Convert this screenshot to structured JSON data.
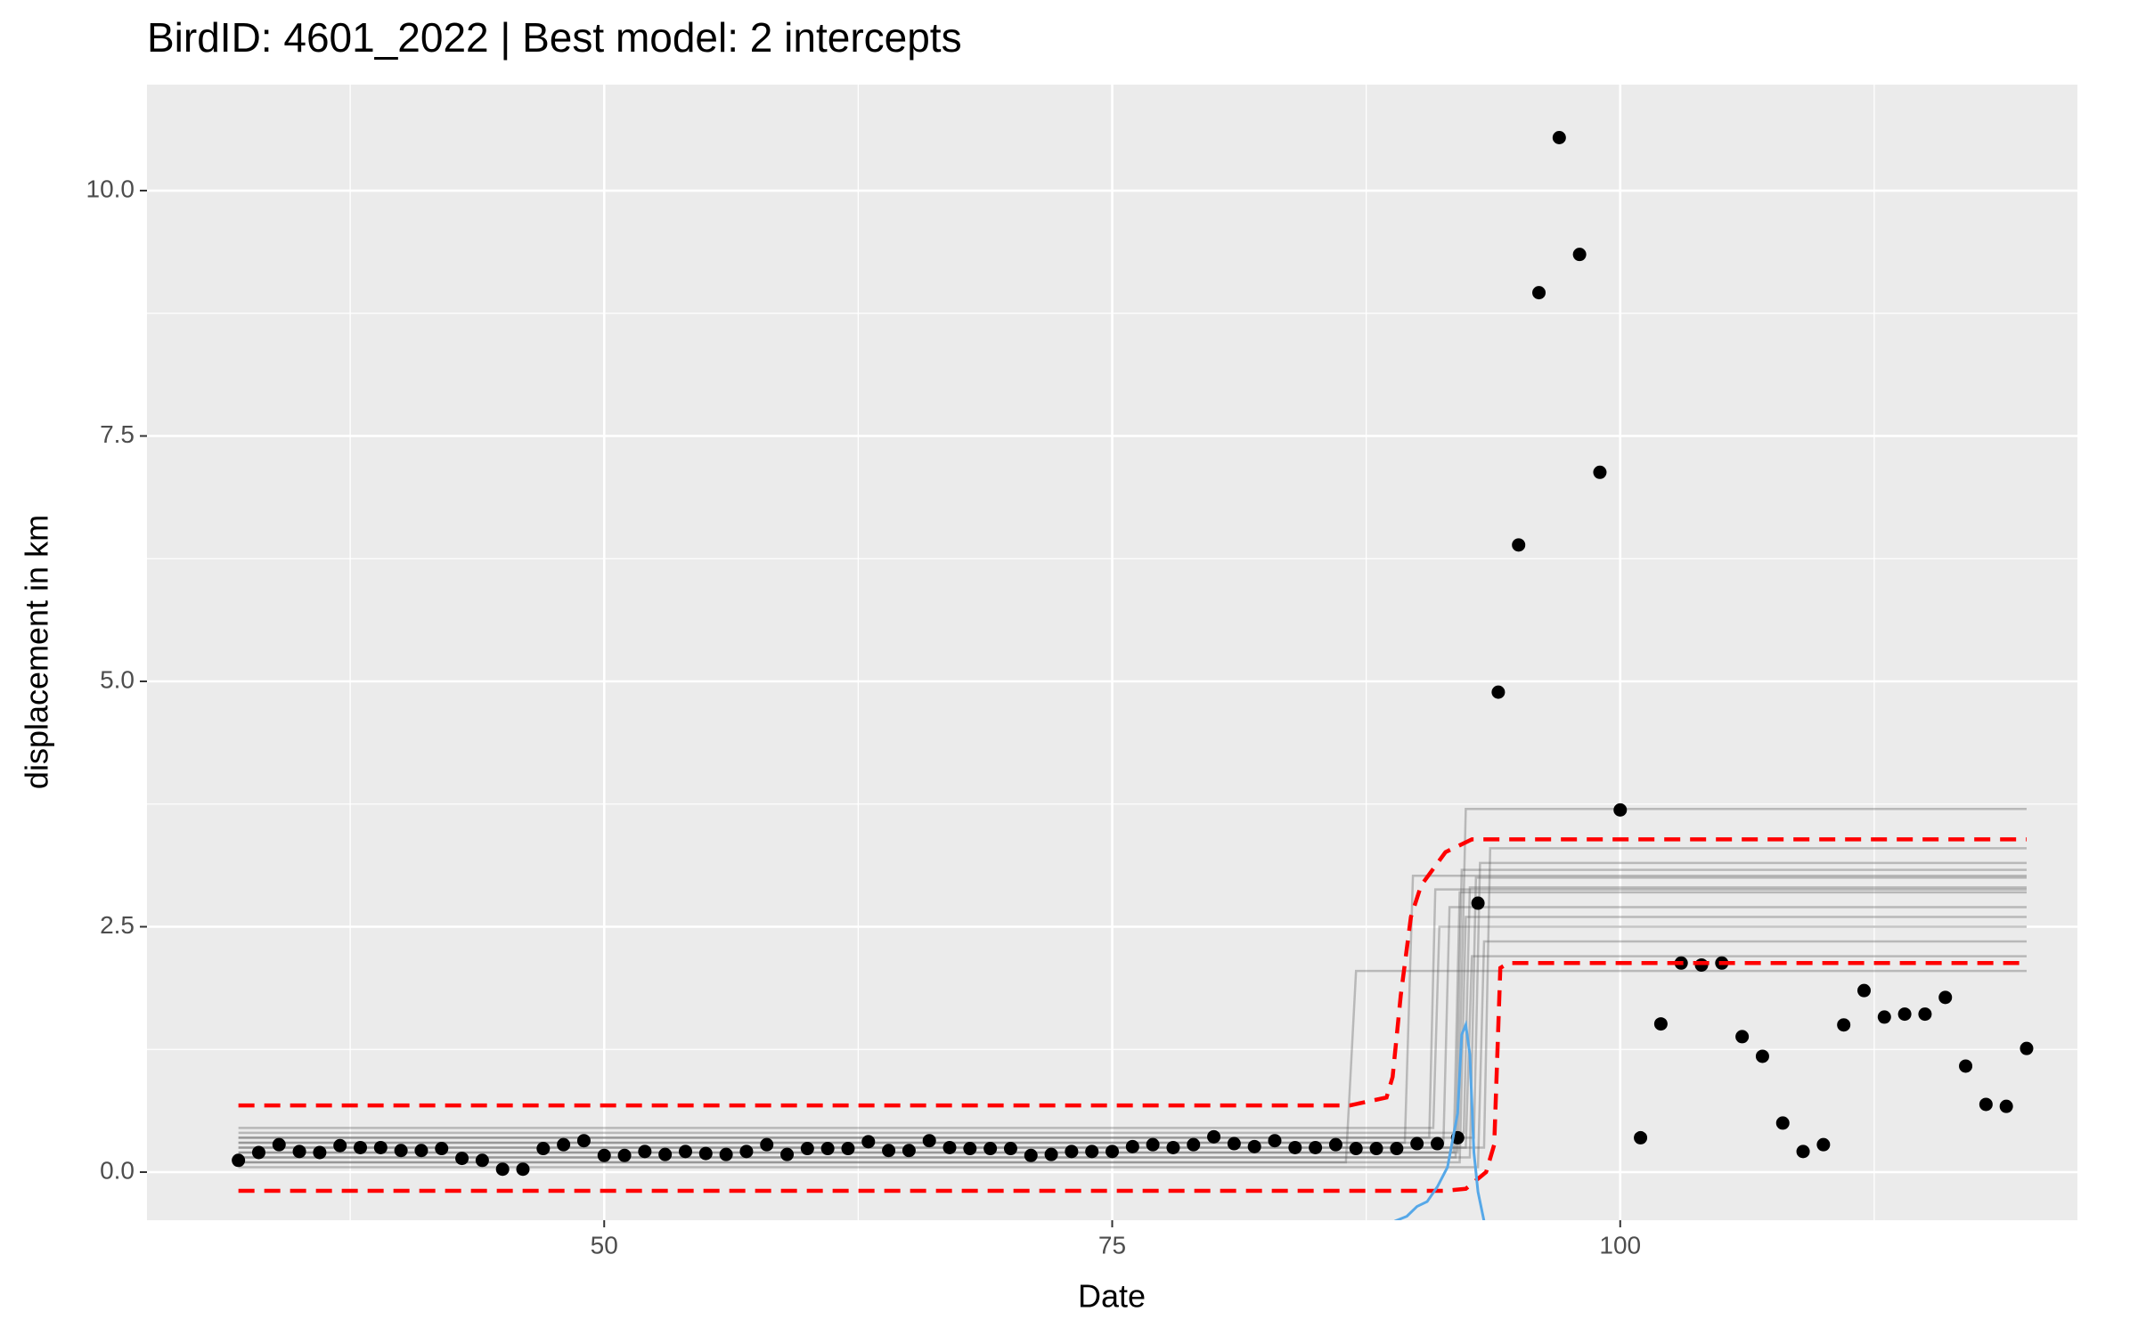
{
  "chart_data": {
    "type": "scatter",
    "title": "BirdID: 4601_2022 | Best model: 2 intercepts",
    "x_label": "Date",
    "y_label": "displacement in km",
    "xlim": [
      27.5,
      122.5
    ],
    "ylim": [
      -0.49,
      11.08
    ],
    "xticks": [
      50,
      75,
      100
    ],
    "yticks": [
      {
        "value": 0,
        "label": "0.0"
      },
      2.5,
      {
        "value": 5,
        "label": "5.0"
      },
      7.5,
      {
        "value": 10,
        "label": "10.0"
      }
    ],
    "x_minor_breaks": [
      37.5,
      62.5,
      87.5,
      112.5
    ],
    "y_minor_breaks": [
      1.25,
      3.75,
      6.25,
      8.75
    ],
    "grid": true,
    "point_color": "#000000",
    "x": [
      32,
      33,
      34,
      35,
      36,
      37,
      38,
      39,
      40,
      41,
      42,
      43,
      44,
      45,
      46,
      47,
      48,
      49,
      50,
      51,
      52,
      53,
      54,
      55,
      56,
      57,
      58,
      59,
      60,
      61,
      62,
      63,
      64,
      65,
      66,
      67,
      68,
      69,
      70,
      71,
      72,
      73,
      74,
      75,
      76,
      77,
      78,
      79,
      80,
      81,
      82,
      83,
      84,
      85,
      86,
      87,
      88,
      89,
      90,
      91,
      92,
      93,
      94,
      95,
      96,
      97,
      98,
      99,
      100,
      101,
      102,
      103,
      104,
      105,
      106,
      107,
      108,
      109,
      110,
      111,
      112,
      113,
      114,
      115,
      116,
      117,
      118,
      119,
      120
    ],
    "values": [
      0.12,
      0.2,
      0.28,
      0.21,
      0.2,
      0.27,
      0.25,
      0.25,
      0.22,
      0.22,
      0.24,
      0.14,
      0.12,
      0.03,
      0.03,
      0.24,
      0.28,
      0.32,
      0.17,
      0.17,
      0.21,
      0.18,
      0.21,
      0.19,
      0.18,
      0.21,
      0.28,
      0.18,
      0.24,
      0.24,
      0.24,
      0.31,
      0.22,
      0.22,
      0.32,
      0.25,
      0.24,
      0.24,
      0.24,
      0.17,
      0.18,
      0.21,
      0.21,
      0.21,
      0.26,
      0.28,
      0.25,
      0.28,
      0.36,
      0.29,
      0.26,
      0.32,
      0.25,
      0.25,
      0.28,
      0.24,
      0.24,
      0.24,
      0.29,
      0.29,
      0.35,
      2.74,
      4.89,
      6.39,
      8.96,
      10.54,
      9.35,
      7.13,
      3.69,
      0.35,
      1.51,
      2.13,
      2.11,
      2.13,
      1.38,
      1.18,
      0.5,
      0.21,
      0.28,
      1.5,
      1.85,
      1.58,
      1.61,
      1.61,
      1.78,
      1.08,
      0.69,
      0.67,
      1.26
    ],
    "model_line_color": "rgba(90,90,90,0.35)",
    "model_lines": [
      {
        "x": [
          32,
          92.0,
          92.4,
          120
        ],
        "values": [
          0.2,
          0.2,
          3.7,
          3.7
        ]
      },
      {
        "x": [
          32,
          89.4,
          89.8,
          120
        ],
        "values": [
          0.3,
          0.3,
          3.02,
          3.02
        ]
      },
      {
        "x": [
          32,
          86.5,
          87.0,
          120
        ],
        "values": [
          0.1,
          0.1,
          2.05,
          2.05
        ]
      },
      {
        "x": [
          32,
          93.3,
          93.6,
          120
        ],
        "values": [
          0.25,
          0.25,
          3.3,
          3.3
        ]
      },
      {
        "x": [
          32,
          92.8,
          93.1,
          120
        ],
        "values": [
          0.35,
          0.35,
          3.15,
          3.15
        ]
      },
      {
        "x": [
          32,
          92.6,
          92.9,
          120
        ],
        "values": [
          0.15,
          0.15,
          3.0,
          3.0
        ]
      },
      {
        "x": [
          32,
          92.3,
          92.6,
          120
        ],
        "values": [
          0.4,
          0.4,
          2.9,
          2.9
        ]
      },
      {
        "x": [
          32,
          91.8,
          92.1,
          120
        ],
        "values": [
          0.2,
          0.2,
          2.85,
          2.85
        ]
      },
      {
        "x": [
          32,
          91.3,
          91.6,
          120
        ],
        "values": [
          0.3,
          0.3,
          2.7,
          2.7
        ]
      },
      {
        "x": [
          32,
          92.1,
          92.4,
          120
        ],
        "values": [
          0.1,
          0.1,
          2.6,
          2.6
        ]
      },
      {
        "x": [
          32,
          90.8,
          91.1,
          120
        ],
        "values": [
          0.45,
          0.45,
          2.5,
          2.5
        ]
      },
      {
        "x": [
          32,
          93.0,
          93.3,
          120
        ],
        "values": [
          0.05,
          0.05,
          2.35,
          2.35
        ]
      },
      {
        "x": [
          32,
          92.4,
          92.7,
          120
        ],
        "values": [
          0.25,
          0.25,
          2.2,
          2.2
        ]
      },
      {
        "x": [
          32,
          90.6,
          90.9,
          120
        ],
        "values": [
          0.35,
          0.35,
          2.88,
          2.88
        ]
      },
      {
        "x": [
          32,
          91.9,
          92.2,
          120
        ],
        "values": [
          0.15,
          0.15,
          3.08,
          3.08
        ]
      }
    ],
    "bounds_color": "#ff0000",
    "bounds_dashed": true,
    "bounds": [
      {
        "x": [
          32,
          86.7,
          88.5,
          88.8,
          89.2,
          89.7,
          90.2,
          91.4,
          92.7,
          120
        ],
        "values": [
          0.68,
          0.68,
          0.76,
          0.97,
          1.8,
          2.6,
          2.92,
          3.26,
          3.39,
          3.39
        ]
      },
      {
        "x": [
          32,
          91.4,
          92.4,
          93.4,
          93.8,
          94.1,
          94.5,
          120
        ],
        "values": [
          -0.19,
          -0.19,
          -0.17,
          0.0,
          0.28,
          2.08,
          2.13,
          2.13
        ]
      }
    ],
    "density": {
      "color": "#56a8e8",
      "x": [
        88.9,
        89.5,
        90.0,
        90.5,
        91.0,
        91.5,
        92.0,
        92.2,
        92.4,
        92.6,
        92.8,
        93.0,
        93.3
      ],
      "values": [
        -0.5,
        -0.45,
        -0.35,
        -0.3,
        -0.15,
        0.05,
        0.6,
        1.4,
        1.5,
        1.2,
        0.2,
        -0.2,
        -0.5
      ]
    }
  }
}
